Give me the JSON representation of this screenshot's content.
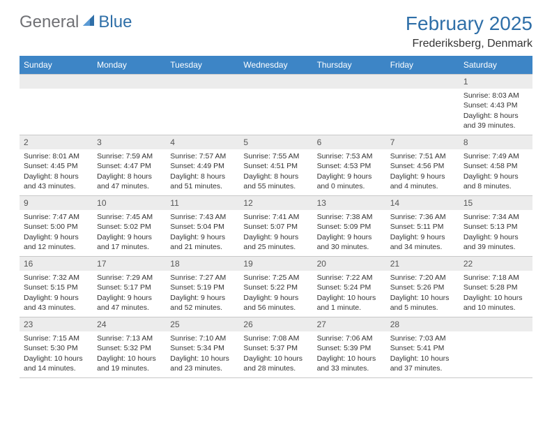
{
  "logo": {
    "general": "General",
    "blue": "Blue"
  },
  "title": "February 2025",
  "location": "Frederiksberg, Denmark",
  "colors": {
    "header_bg": "#3d85c6",
    "header_text": "#ffffff",
    "daynum_bg": "#ececec",
    "border": "#c8c8c8",
    "accent": "#2f6fa8",
    "text": "#333333",
    "logo_gray": "#6f7074"
  },
  "columns": [
    "Sunday",
    "Monday",
    "Tuesday",
    "Wednesday",
    "Thursday",
    "Friday",
    "Saturday"
  ],
  "weeks": [
    [
      null,
      null,
      null,
      null,
      null,
      null,
      {
        "day": "1",
        "sunrise": "Sunrise: 8:03 AM",
        "sunset": "Sunset: 4:43 PM",
        "daylight1": "Daylight: 8 hours",
        "daylight2": "and 39 minutes."
      }
    ],
    [
      {
        "day": "2",
        "sunrise": "Sunrise: 8:01 AM",
        "sunset": "Sunset: 4:45 PM",
        "daylight1": "Daylight: 8 hours",
        "daylight2": "and 43 minutes."
      },
      {
        "day": "3",
        "sunrise": "Sunrise: 7:59 AM",
        "sunset": "Sunset: 4:47 PM",
        "daylight1": "Daylight: 8 hours",
        "daylight2": "and 47 minutes."
      },
      {
        "day": "4",
        "sunrise": "Sunrise: 7:57 AM",
        "sunset": "Sunset: 4:49 PM",
        "daylight1": "Daylight: 8 hours",
        "daylight2": "and 51 minutes."
      },
      {
        "day": "5",
        "sunrise": "Sunrise: 7:55 AM",
        "sunset": "Sunset: 4:51 PM",
        "daylight1": "Daylight: 8 hours",
        "daylight2": "and 55 minutes."
      },
      {
        "day": "6",
        "sunrise": "Sunrise: 7:53 AM",
        "sunset": "Sunset: 4:53 PM",
        "daylight1": "Daylight: 9 hours",
        "daylight2": "and 0 minutes."
      },
      {
        "day": "7",
        "sunrise": "Sunrise: 7:51 AM",
        "sunset": "Sunset: 4:56 PM",
        "daylight1": "Daylight: 9 hours",
        "daylight2": "and 4 minutes."
      },
      {
        "day": "8",
        "sunrise": "Sunrise: 7:49 AM",
        "sunset": "Sunset: 4:58 PM",
        "daylight1": "Daylight: 9 hours",
        "daylight2": "and 8 minutes."
      }
    ],
    [
      {
        "day": "9",
        "sunrise": "Sunrise: 7:47 AM",
        "sunset": "Sunset: 5:00 PM",
        "daylight1": "Daylight: 9 hours",
        "daylight2": "and 12 minutes."
      },
      {
        "day": "10",
        "sunrise": "Sunrise: 7:45 AM",
        "sunset": "Sunset: 5:02 PM",
        "daylight1": "Daylight: 9 hours",
        "daylight2": "and 17 minutes."
      },
      {
        "day": "11",
        "sunrise": "Sunrise: 7:43 AM",
        "sunset": "Sunset: 5:04 PM",
        "daylight1": "Daylight: 9 hours",
        "daylight2": "and 21 minutes."
      },
      {
        "day": "12",
        "sunrise": "Sunrise: 7:41 AM",
        "sunset": "Sunset: 5:07 PM",
        "daylight1": "Daylight: 9 hours",
        "daylight2": "and 25 minutes."
      },
      {
        "day": "13",
        "sunrise": "Sunrise: 7:38 AM",
        "sunset": "Sunset: 5:09 PM",
        "daylight1": "Daylight: 9 hours",
        "daylight2": "and 30 minutes."
      },
      {
        "day": "14",
        "sunrise": "Sunrise: 7:36 AM",
        "sunset": "Sunset: 5:11 PM",
        "daylight1": "Daylight: 9 hours",
        "daylight2": "and 34 minutes."
      },
      {
        "day": "15",
        "sunrise": "Sunrise: 7:34 AM",
        "sunset": "Sunset: 5:13 PM",
        "daylight1": "Daylight: 9 hours",
        "daylight2": "and 39 minutes."
      }
    ],
    [
      {
        "day": "16",
        "sunrise": "Sunrise: 7:32 AM",
        "sunset": "Sunset: 5:15 PM",
        "daylight1": "Daylight: 9 hours",
        "daylight2": "and 43 minutes."
      },
      {
        "day": "17",
        "sunrise": "Sunrise: 7:29 AM",
        "sunset": "Sunset: 5:17 PM",
        "daylight1": "Daylight: 9 hours",
        "daylight2": "and 47 minutes."
      },
      {
        "day": "18",
        "sunrise": "Sunrise: 7:27 AM",
        "sunset": "Sunset: 5:19 PM",
        "daylight1": "Daylight: 9 hours",
        "daylight2": "and 52 minutes."
      },
      {
        "day": "19",
        "sunrise": "Sunrise: 7:25 AM",
        "sunset": "Sunset: 5:22 PM",
        "daylight1": "Daylight: 9 hours",
        "daylight2": "and 56 minutes."
      },
      {
        "day": "20",
        "sunrise": "Sunrise: 7:22 AM",
        "sunset": "Sunset: 5:24 PM",
        "daylight1": "Daylight: 10 hours",
        "daylight2": "and 1 minute."
      },
      {
        "day": "21",
        "sunrise": "Sunrise: 7:20 AM",
        "sunset": "Sunset: 5:26 PM",
        "daylight1": "Daylight: 10 hours",
        "daylight2": "and 5 minutes."
      },
      {
        "day": "22",
        "sunrise": "Sunrise: 7:18 AM",
        "sunset": "Sunset: 5:28 PM",
        "daylight1": "Daylight: 10 hours",
        "daylight2": "and 10 minutes."
      }
    ],
    [
      {
        "day": "23",
        "sunrise": "Sunrise: 7:15 AM",
        "sunset": "Sunset: 5:30 PM",
        "daylight1": "Daylight: 10 hours",
        "daylight2": "and 14 minutes."
      },
      {
        "day": "24",
        "sunrise": "Sunrise: 7:13 AM",
        "sunset": "Sunset: 5:32 PM",
        "daylight1": "Daylight: 10 hours",
        "daylight2": "and 19 minutes."
      },
      {
        "day": "25",
        "sunrise": "Sunrise: 7:10 AM",
        "sunset": "Sunset: 5:34 PM",
        "daylight1": "Daylight: 10 hours",
        "daylight2": "and 23 minutes."
      },
      {
        "day": "26",
        "sunrise": "Sunrise: 7:08 AM",
        "sunset": "Sunset: 5:37 PM",
        "daylight1": "Daylight: 10 hours",
        "daylight2": "and 28 minutes."
      },
      {
        "day": "27",
        "sunrise": "Sunrise: 7:06 AM",
        "sunset": "Sunset: 5:39 PM",
        "daylight1": "Daylight: 10 hours",
        "daylight2": "and 33 minutes."
      },
      {
        "day": "28",
        "sunrise": "Sunrise: 7:03 AM",
        "sunset": "Sunset: 5:41 PM",
        "daylight1": "Daylight: 10 hours",
        "daylight2": "and 37 minutes."
      },
      null
    ]
  ]
}
